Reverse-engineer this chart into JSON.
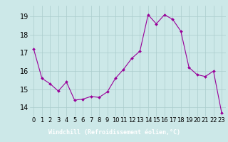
{
  "hours": [
    0,
    1,
    2,
    3,
    4,
    5,
    6,
    7,
    8,
    9,
    10,
    11,
    12,
    13,
    14,
    15,
    16,
    17,
    18,
    19,
    20,
    21,
    22,
    23
  ],
  "data_y": [
    17.2,
    15.6,
    15.3,
    14.9,
    15.4,
    14.4,
    14.45,
    14.6,
    14.55,
    14.85,
    15.6,
    16.1,
    16.7,
    17.1,
    19.1,
    18.6,
    19.1,
    18.85,
    18.2,
    16.2,
    15.8,
    15.7,
    16.0,
    13.7
  ],
  "line_color": "#990099",
  "marker": "D",
  "marker_size": 2,
  "bg_color": "#cce8e8",
  "grid_color": "#aacccc",
  "xlabel": "Windchill (Refroidissement éolien,°C)",
  "xlabel_bg": "#7733aa",
  "xlabel_color": "#ffffff",
  "ylim_min": 13.5,
  "ylim_max": 19.6,
  "yticks": [
    14,
    15,
    16,
    17,
    18,
    19
  ],
  "xticks": [
    0,
    1,
    2,
    3,
    4,
    5,
    6,
    7,
    8,
    9,
    10,
    11,
    12,
    13,
    14,
    15,
    16,
    17,
    18,
    19,
    20,
    21,
    22,
    23
  ],
  "tick_fontsize": 6,
  "ytick_fontsize": 7,
  "xlabel_fontsize": 6
}
